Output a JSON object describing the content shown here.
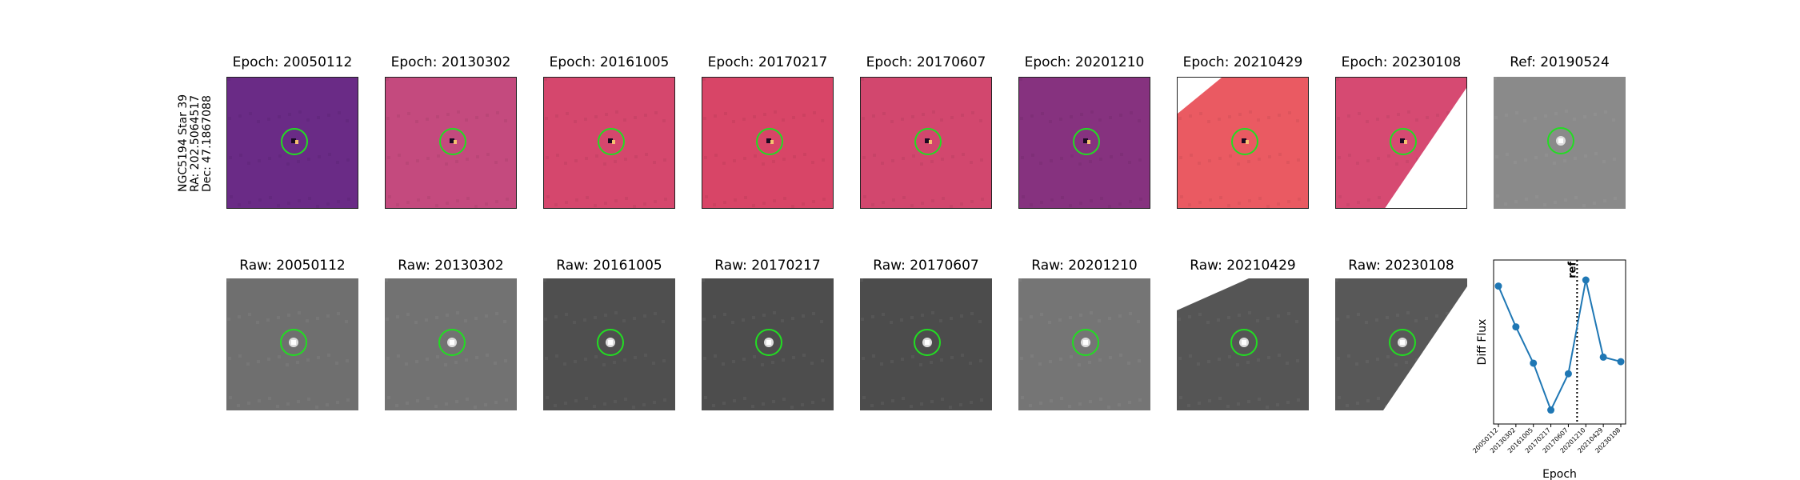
{
  "object": {
    "name": "NGC5194 Star 39",
    "ra": "RA: 202.5064517",
    "dec": "Dec: 47.1867088"
  },
  "diff_panels": [
    {
      "title": "Epoch: 20050112",
      "bg": "#6a2b86",
      "edge": "none"
    },
    {
      "title": "Epoch: 20130302",
      "bg": "#c44a7e",
      "edge": "none"
    },
    {
      "title": "Epoch: 20161005",
      "bg": "#d5476d",
      "edge": "none"
    },
    {
      "title": "Epoch: 20170217",
      "bg": "#d84567",
      "edge": "none"
    },
    {
      "title": "Epoch: 20170607",
      "bg": "#d2476e",
      "edge": "none"
    },
    {
      "title": "Epoch: 20201210",
      "bg": "#86327f",
      "edge": "none"
    },
    {
      "title": "Epoch: 20210429",
      "bg": "#ea5a62",
      "edge": "top-left"
    },
    {
      "title": "Epoch: 20230108",
      "bg": "#d64a72",
      "edge": "bottom-right"
    }
  ],
  "ref_panel": {
    "title": "Ref: 20190524",
    "bg": "#8a8a8a"
  },
  "raw_panels": [
    {
      "title": "Raw: 20050112",
      "bg": "#6f6f6f",
      "edge": "none"
    },
    {
      "title": "Raw: 20130302",
      "bg": "#727272",
      "edge": "none"
    },
    {
      "title": "Raw: 20161005",
      "bg": "#4f4f4f",
      "edge": "none"
    },
    {
      "title": "Raw: 20170217",
      "bg": "#4d4d4d",
      "edge": "none"
    },
    {
      "title": "Raw: 20170607",
      "bg": "#4c4c4c",
      "edge": "none"
    },
    {
      "title": "Raw: 20201210",
      "bg": "#757575",
      "edge": "none"
    },
    {
      "title": "Raw: 20210429",
      "bg": "#555555",
      "edge": "top-left"
    },
    {
      "title": "Raw: 20230108",
      "bg": "#585858",
      "edge": "bottom-right"
    }
  ],
  "colors": {
    "circle": "#22dd22",
    "line": "#1f77b4"
  },
  "chart_data": {
    "type": "line",
    "title": "",
    "xlabel": "Epoch",
    "ylabel": "Diff Flux",
    "categories": [
      "20050112",
      "20130302",
      "20161005",
      "20170217",
      "20170607",
      "20201210",
      "20210429",
      "20230108"
    ],
    "series": [
      {
        "values": [
          0.87,
          0.6,
          0.36,
          0.05,
          0.29,
          0.91,
          0.4,
          0.37
        ]
      }
    ],
    "ylim": [
      0,
      1
    ],
    "yticks": "none",
    "reference_line": {
      "label": "ref",
      "position_between": [
        "20170607",
        "20201210"
      ],
      "style": "dotted"
    },
    "grid": false
  }
}
